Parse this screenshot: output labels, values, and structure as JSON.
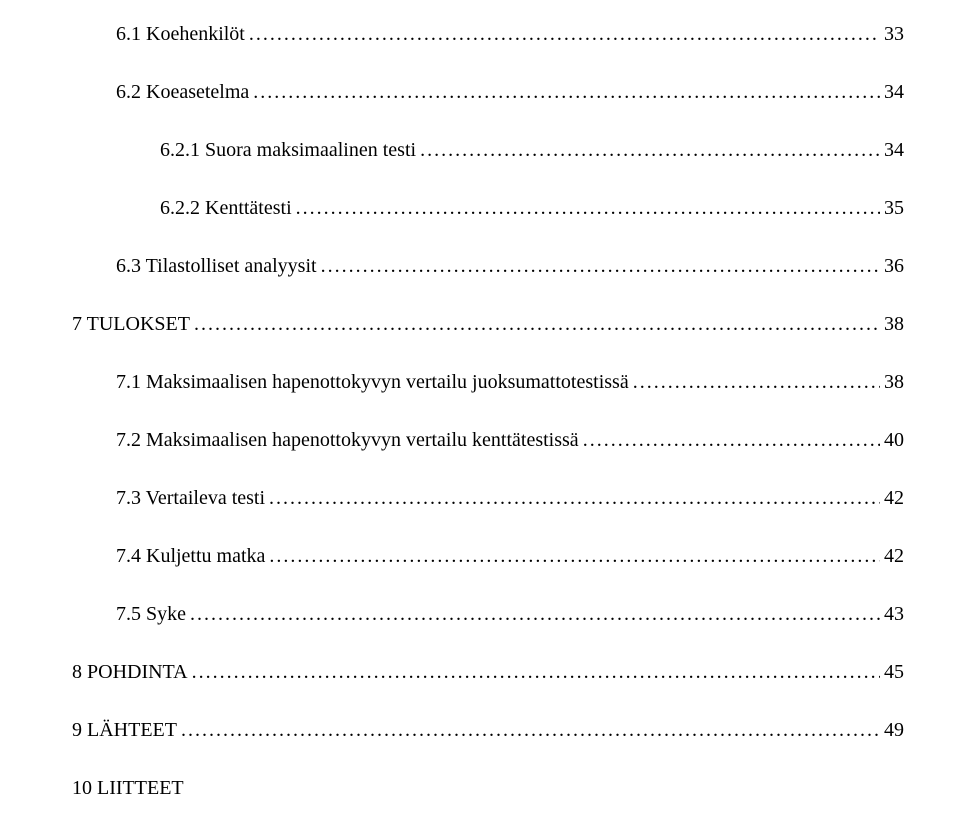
{
  "typography": {
    "font_family": "Times New Roman",
    "font_size_pt": 15,
    "color": "#000000",
    "background_color": "#ffffff",
    "leader_char": "."
  },
  "entries": [
    {
      "label": "6.1   Koehenkilöt",
      "page": "33",
      "indent": 1
    },
    {
      "label": "6.2   Koeasetelma",
      "page": "34",
      "indent": 1
    },
    {
      "label": "6.2.1   Suora maksimaalinen testi",
      "page": "34",
      "indent": 2
    },
    {
      "label": "6.2.2   Kenttätesti",
      "page": "35",
      "indent": 2
    },
    {
      "label": "6.3   Tilastolliset analyysit",
      "page": "36",
      "indent": 1
    },
    {
      "label": "7 TULOKSET",
      "page": "38",
      "indent": 0
    },
    {
      "label": "7.1   Maksimaalisen hapenottokyvyn vertailu juoksumattotestissä",
      "page": "38",
      "indent": 1
    },
    {
      "label": "7.2   Maksimaalisen hapenottokyvyn vertailu kenttätestissä",
      "page": "40",
      "indent": 1
    },
    {
      "label": "7.3   Vertaileva testi",
      "page": "42",
      "indent": 1
    },
    {
      "label": "7.4   Kuljettu matka",
      "page": "42",
      "indent": 1
    },
    {
      "label": "7.5   Syke",
      "page": "43",
      "indent": 1
    },
    {
      "label": "8 POHDINTA",
      "page": "45",
      "indent": 0
    },
    {
      "label": "9 LÄHTEET",
      "page": "49",
      "indent": 0
    },
    {
      "label": "10 LIITTEET",
      "page": "",
      "indent": 0,
      "no_leader": true
    }
  ]
}
